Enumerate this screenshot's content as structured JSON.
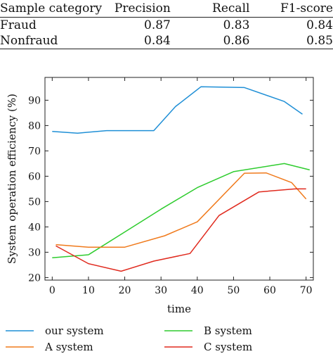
{
  "table": {
    "headers": [
      "Sample category",
      "Precision",
      "Recall",
      "F1-score"
    ],
    "rows": [
      [
        "Fraud",
        "0.87",
        "0.83",
        "0.84"
      ],
      [
        "Nonfraud",
        "0.84",
        "0.86",
        "0.85"
      ]
    ]
  },
  "chart_data": {
    "type": "line",
    "xlabel": "time",
    "ylabel": "System operation efficiency (%)",
    "xlim": [
      -2,
      72
    ],
    "ylim": [
      19,
      99
    ],
    "xticks": [
      0,
      10,
      20,
      30,
      40,
      50,
      60,
      70
    ],
    "yticks": [
      20,
      30,
      40,
      50,
      60,
      70,
      80,
      90
    ],
    "grid": false,
    "legend_position": "bottom",
    "series": [
      {
        "name": "our system",
        "color": "#1f8fd6",
        "x": [
          0,
          7,
          15,
          22,
          28,
          34,
          41,
          53,
          64,
          69
        ],
        "y": [
          77.7,
          77.0,
          78.0,
          78.0,
          78.0,
          87.5,
          95.3,
          95.0,
          89.5,
          84.5
        ]
      },
      {
        "name": "B system",
        "color": "#2ecc2e",
        "x": [
          0,
          10,
          20,
          30,
          40,
          50,
          64,
          71
        ],
        "y": [
          27.8,
          29.0,
          38.0,
          47.0,
          55.5,
          61.8,
          65.0,
          62.5
        ]
      },
      {
        "name": "A system",
        "color": "#f07a1c",
        "x": [
          1,
          10,
          20,
          31,
          40,
          53,
          59,
          66,
          70
        ],
        "y": [
          33.0,
          32.0,
          32.0,
          36.5,
          42.0,
          61.2,
          61.3,
          57.5,
          51.0
        ]
      },
      {
        "name": "C system",
        "color": "#e02a1e",
        "x": [
          1,
          10,
          19,
          28,
          38,
          46,
          57,
          67,
          70
        ],
        "y": [
          32.5,
          25.5,
          22.5,
          26.5,
          29.5,
          44.5,
          53.8,
          55.0,
          55.0
        ]
      }
    ]
  }
}
